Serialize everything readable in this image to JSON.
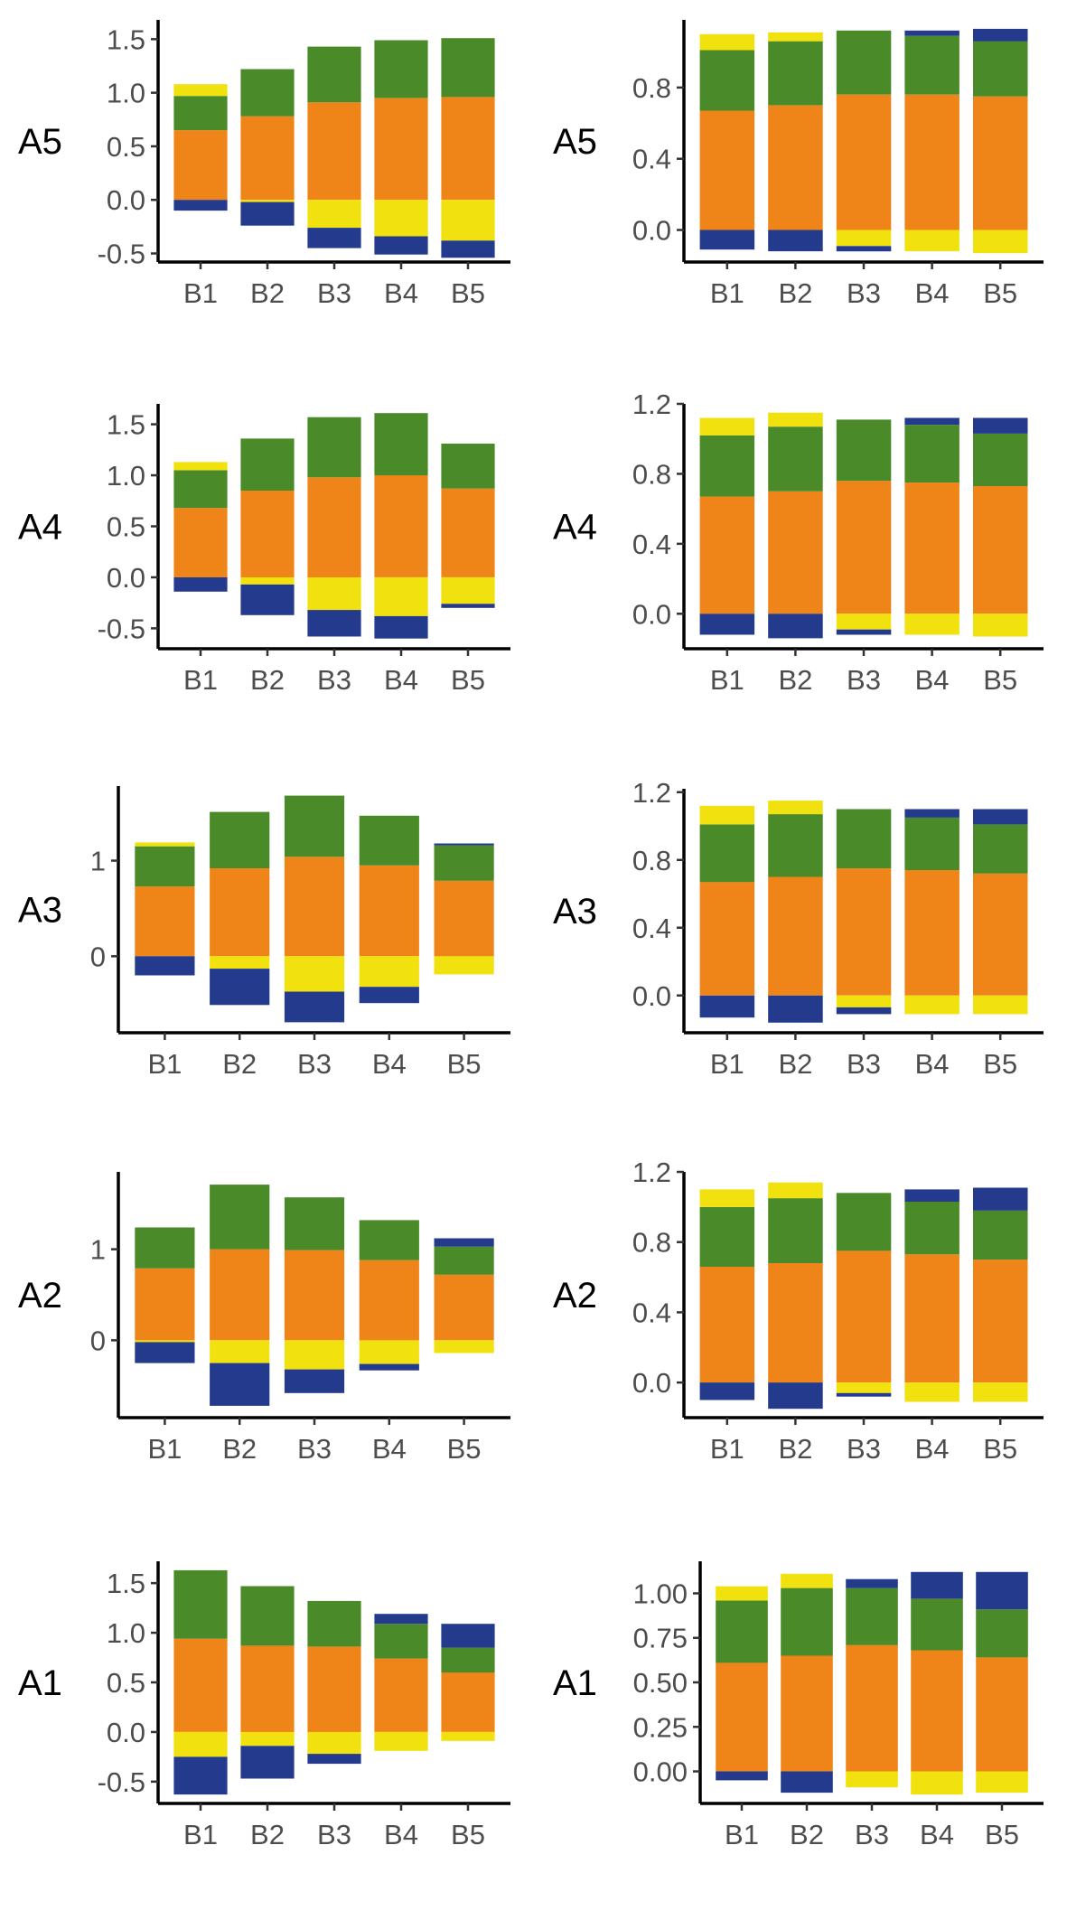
{
  "figure": {
    "colors": {
      "negative_high": "#243a8c",
      "negative_low": "#f0e10f",
      "positive_low": "#ef8519",
      "positive_mid": "#4a8a29",
      "positive_top_yellow": "#f0e10f",
      "positive_top_blue": "#243a8c"
    }
  },
  "chart_data": [
    {
      "type": "bar",
      "stacked": true,
      "row": "A5",
      "column": "left",
      "categories": [
        "B1",
        "B2",
        "B3",
        "B4",
        "B5"
      ],
      "ylim": [
        -0.58,
        1.68
      ],
      "yticks": [
        -0.5,
        0.0,
        0.5,
        1.0,
        1.5
      ],
      "ytick_labels": [
        "-0.5",
        "0.0",
        "0.5",
        "1.0",
        "1.5"
      ],
      "series": [
        {
          "name": "orange",
          "color": "#ef8519",
          "base": 0,
          "values": [
            0.65,
            0.78,
            0.91,
            0.95,
            0.96
          ]
        },
        {
          "name": "green",
          "color": "#4a8a29",
          "values": [
            0.32,
            0.44,
            0.52,
            0.54,
            0.55
          ]
        },
        {
          "name": "yellow-top",
          "color": "#f0e10f",
          "values": [
            0.11,
            0.0,
            0.0,
            0.0,
            0.0
          ]
        },
        {
          "name": "yellow-neg",
          "color": "#f0e10f",
          "values": [
            0.0,
            -0.02,
            -0.26,
            -0.34,
            -0.38
          ]
        },
        {
          "name": "blue-neg",
          "color": "#243a8c",
          "values": [
            -0.1,
            -0.22,
            -0.19,
            -0.17,
            -0.16
          ]
        }
      ]
    },
    {
      "type": "bar",
      "stacked": true,
      "row": "A5",
      "column": "right",
      "categories": [
        "B1",
        "B2",
        "B3",
        "B4",
        "B5"
      ],
      "ylim": [
        -0.18,
        1.18
      ],
      "yticks": [
        0.0,
        0.4,
        0.8
      ],
      "ytick_labels": [
        "0.0",
        "0.4",
        "0.8"
      ],
      "series": [
        {
          "name": "orange",
          "color": "#ef8519",
          "base": 0,
          "values": [
            0.67,
            0.7,
            0.76,
            0.76,
            0.75
          ]
        },
        {
          "name": "green",
          "color": "#4a8a29",
          "values": [
            0.34,
            0.36,
            0.36,
            0.33,
            0.31
          ]
        },
        {
          "name": "yellow-top",
          "color": "#f0e10f",
          "values": [
            0.09,
            0.05,
            0.0,
            0.0,
            0.0
          ]
        },
        {
          "name": "blue-top",
          "color": "#243a8c",
          "values": [
            0.0,
            0.0,
            0.0,
            0.03,
            0.07
          ]
        },
        {
          "name": "yellow-neg",
          "color": "#f0e10f",
          "values": [
            0.0,
            0.0,
            -0.09,
            -0.12,
            -0.13
          ]
        },
        {
          "name": "blue-neg",
          "color": "#243a8c",
          "values": [
            -0.11,
            -0.12,
            -0.03,
            0.0,
            0.0
          ]
        }
      ]
    },
    {
      "type": "bar",
      "stacked": true,
      "row": "A4",
      "column": "left",
      "categories": [
        "B1",
        "B2",
        "B3",
        "B4",
        "B5"
      ],
      "ylim": [
        -0.7,
        1.7
      ],
      "yticks": [
        -0.5,
        0.0,
        0.5,
        1.0,
        1.5
      ],
      "ytick_labels": [
        "-0.5",
        "0.0",
        "0.5",
        "1.0",
        "1.5"
      ],
      "series": [
        {
          "name": "orange",
          "color": "#ef8519",
          "base": 0,
          "values": [
            0.68,
            0.85,
            0.98,
            1.0,
            0.87
          ]
        },
        {
          "name": "green",
          "color": "#4a8a29",
          "values": [
            0.37,
            0.51,
            0.59,
            0.61,
            0.44
          ]
        },
        {
          "name": "yellow-top",
          "color": "#f0e10f",
          "values": [
            0.08,
            0.0,
            0.0,
            0.0,
            0.0
          ]
        },
        {
          "name": "yellow-neg",
          "color": "#f0e10f",
          "values": [
            0.0,
            -0.07,
            -0.32,
            -0.38,
            -0.26
          ]
        },
        {
          "name": "blue-neg",
          "color": "#243a8c",
          "values": [
            -0.14,
            -0.3,
            -0.26,
            -0.22,
            -0.04
          ]
        }
      ]
    },
    {
      "type": "bar",
      "stacked": true,
      "row": "A4",
      "column": "right",
      "categories": [
        "B1",
        "B2",
        "B3",
        "B4",
        "B5"
      ],
      "ylim": [
        -0.2,
        1.2
      ],
      "yticks": [
        0.0,
        0.4,
        0.8,
        1.2
      ],
      "ytick_labels": [
        "0.0",
        "0.4",
        "0.8",
        "1.2"
      ],
      "series": [
        {
          "name": "orange",
          "color": "#ef8519",
          "base": 0,
          "values": [
            0.67,
            0.7,
            0.76,
            0.75,
            0.73
          ]
        },
        {
          "name": "green",
          "color": "#4a8a29",
          "values": [
            0.35,
            0.37,
            0.35,
            0.33,
            0.3
          ]
        },
        {
          "name": "yellow-top",
          "color": "#f0e10f",
          "values": [
            0.1,
            0.08,
            0.0,
            0.0,
            0.0
          ]
        },
        {
          "name": "blue-top",
          "color": "#243a8c",
          "values": [
            0.0,
            0.0,
            0.0,
            0.04,
            0.09
          ]
        },
        {
          "name": "yellow-neg",
          "color": "#f0e10f",
          "values": [
            0.0,
            0.0,
            -0.09,
            -0.12,
            -0.13
          ]
        },
        {
          "name": "blue-neg",
          "color": "#243a8c",
          "values": [
            -0.12,
            -0.14,
            -0.03,
            0.0,
            0.0
          ]
        }
      ]
    },
    {
      "type": "bar",
      "stacked": true,
      "row": "A3",
      "column": "left",
      "categories": [
        "B1",
        "B2",
        "B3",
        "B4",
        "B5"
      ],
      "ylim": [
        -0.8,
        1.78
      ],
      "yticks": [
        0,
        1
      ],
      "ytick_labels": [
        "0",
        "1"
      ],
      "series": [
        {
          "name": "orange",
          "color": "#ef8519",
          "base": 0,
          "values": [
            0.73,
            0.92,
            1.04,
            0.95,
            0.79
          ]
        },
        {
          "name": "green",
          "color": "#4a8a29",
          "values": [
            0.42,
            0.59,
            0.64,
            0.52,
            0.37
          ]
        },
        {
          "name": "yellow-top",
          "color": "#f0e10f",
          "values": [
            0.04,
            0.0,
            0.0,
            0.0,
            0.0
          ]
        },
        {
          "name": "blue-top",
          "color": "#243a8c",
          "values": [
            0.0,
            0.0,
            0.0,
            0.0,
            0.02
          ]
        },
        {
          "name": "yellow-neg",
          "color": "#f0e10f",
          "values": [
            0.0,
            -0.13,
            -0.37,
            -0.32,
            -0.19
          ]
        },
        {
          "name": "blue-neg",
          "color": "#243a8c",
          "values": [
            -0.2,
            -0.38,
            -0.32,
            -0.17,
            0.0
          ]
        }
      ]
    },
    {
      "type": "bar",
      "stacked": true,
      "row": "A3",
      "column": "right",
      "categories": [
        "B1",
        "B2",
        "B3",
        "B4",
        "B5"
      ],
      "ylim": [
        -0.22,
        1.22
      ],
      "yticks": [
        0.0,
        0.4,
        0.8,
        1.2
      ],
      "ytick_labels": [
        "0.0",
        "0.4",
        "0.8",
        "1.2"
      ],
      "series": [
        {
          "name": "orange",
          "color": "#ef8519",
          "base": 0,
          "values": [
            0.67,
            0.7,
            0.75,
            0.74,
            0.72
          ]
        },
        {
          "name": "green",
          "color": "#4a8a29",
          "values": [
            0.34,
            0.37,
            0.35,
            0.31,
            0.29
          ]
        },
        {
          "name": "yellow-top",
          "color": "#f0e10f",
          "values": [
            0.11,
            0.08,
            0.0,
            0.0,
            0.0
          ]
        },
        {
          "name": "blue-top",
          "color": "#243a8c",
          "values": [
            0.0,
            0.0,
            0.0,
            0.05,
            0.09
          ]
        },
        {
          "name": "yellow-neg",
          "color": "#f0e10f",
          "values": [
            0.0,
            0.0,
            -0.07,
            -0.11,
            -0.11
          ]
        },
        {
          "name": "blue-neg",
          "color": "#243a8c",
          "values": [
            -0.13,
            -0.16,
            -0.04,
            0.0,
            0.0
          ]
        }
      ]
    },
    {
      "type": "bar",
      "stacked": true,
      "row": "A2",
      "column": "left",
      "categories": [
        "B1",
        "B2",
        "B3",
        "B4",
        "B5"
      ],
      "ylim": [
        -0.85,
        1.85
      ],
      "yticks": [
        0,
        1
      ],
      "ytick_labels": [
        "0",
        "1"
      ],
      "series": [
        {
          "name": "orange",
          "color": "#ef8519",
          "base": 0,
          "values": [
            0.79,
            1.0,
            0.99,
            0.88,
            0.72
          ]
        },
        {
          "name": "green",
          "color": "#4a8a29",
          "values": [
            0.45,
            0.71,
            0.58,
            0.44,
            0.31
          ]
        },
        {
          "name": "blue-top",
          "color": "#243a8c",
          "values": [
            0.0,
            0.0,
            0.0,
            0.0,
            0.09
          ]
        },
        {
          "name": "yellow-neg",
          "color": "#f0e10f",
          "values": [
            -0.02,
            -0.25,
            -0.32,
            -0.26,
            -0.14
          ]
        },
        {
          "name": "blue-neg",
          "color": "#243a8c",
          "values": [
            -0.23,
            -0.47,
            -0.26,
            -0.07,
            0.0
          ]
        }
      ]
    },
    {
      "type": "bar",
      "stacked": true,
      "row": "A2",
      "column": "right",
      "categories": [
        "B1",
        "B2",
        "B3",
        "B4",
        "B5"
      ],
      "ylim": [
        -0.2,
        1.2
      ],
      "yticks": [
        0.0,
        0.4,
        0.8,
        1.2
      ],
      "ytick_labels": [
        "0.0",
        "0.4",
        "0.8",
        "1.2"
      ],
      "series": [
        {
          "name": "orange",
          "color": "#ef8519",
          "base": 0,
          "values": [
            0.66,
            0.68,
            0.75,
            0.73,
            0.7
          ]
        },
        {
          "name": "green",
          "color": "#4a8a29",
          "values": [
            0.34,
            0.37,
            0.33,
            0.3,
            0.28
          ]
        },
        {
          "name": "yellow-top",
          "color": "#f0e10f",
          "values": [
            0.1,
            0.09,
            0.0,
            0.0,
            0.0
          ]
        },
        {
          "name": "blue-top",
          "color": "#243a8c",
          "values": [
            0.0,
            0.0,
            0.0,
            0.07,
            0.13
          ]
        },
        {
          "name": "yellow-neg",
          "color": "#f0e10f",
          "values": [
            0.0,
            0.0,
            -0.06,
            -0.11,
            -0.11
          ]
        },
        {
          "name": "blue-neg",
          "color": "#243a8c",
          "values": [
            -0.1,
            -0.15,
            -0.02,
            0.0,
            0.0
          ]
        }
      ]
    },
    {
      "type": "bar",
      "stacked": true,
      "row": "A1",
      "column": "left",
      "categories": [
        "B1",
        "B2",
        "B3",
        "B4",
        "B5"
      ],
      "ylim": [
        -0.72,
        1.72
      ],
      "yticks": [
        -0.5,
        0.0,
        0.5,
        1.0,
        1.5
      ],
      "ytick_labels": [
        "-0.5",
        "0.0",
        "0.5",
        "1.0",
        "1.5"
      ],
      "series": [
        {
          "name": "orange",
          "color": "#ef8519",
          "base": 0,
          "values": [
            0.94,
            0.87,
            0.86,
            0.74,
            0.6
          ]
        },
        {
          "name": "green",
          "color": "#4a8a29",
          "values": [
            0.69,
            0.6,
            0.46,
            0.35,
            0.25
          ]
        },
        {
          "name": "blue-top",
          "color": "#243a8c",
          "values": [
            0.0,
            0.0,
            0.0,
            0.1,
            0.24
          ]
        },
        {
          "name": "yellow-neg",
          "color": "#f0e10f",
          "values": [
            -0.25,
            -0.14,
            -0.22,
            -0.19,
            -0.09
          ]
        },
        {
          "name": "blue-neg",
          "color": "#243a8c",
          "values": [
            -0.38,
            -0.33,
            -0.1,
            0.0,
            0.0
          ]
        }
      ]
    },
    {
      "type": "bar",
      "stacked": true,
      "row": "A1",
      "column": "right",
      "categories": [
        "B1",
        "B2",
        "B3",
        "B4",
        "B5"
      ],
      "ylim": [
        -0.18,
        1.18
      ],
      "yticks": [
        0.0,
        0.25,
        0.5,
        0.75,
        1.0
      ],
      "ytick_labels": [
        "0.00",
        "0.25",
        "0.50",
        "0.75",
        "1.00"
      ],
      "series": [
        {
          "name": "orange",
          "color": "#ef8519",
          "base": 0,
          "values": [
            0.61,
            0.65,
            0.71,
            0.68,
            0.64
          ]
        },
        {
          "name": "green",
          "color": "#4a8a29",
          "values": [
            0.35,
            0.38,
            0.32,
            0.29,
            0.27
          ]
        },
        {
          "name": "yellow-top",
          "color": "#f0e10f",
          "values": [
            0.08,
            0.08,
            0.0,
            0.0,
            0.0
          ]
        },
        {
          "name": "blue-top",
          "color": "#243a8c",
          "values": [
            0.0,
            0.0,
            0.05,
            0.15,
            0.21
          ]
        },
        {
          "name": "yellow-neg",
          "color": "#f0e10f",
          "values": [
            0.0,
            0.0,
            -0.09,
            -0.13,
            -0.12
          ]
        },
        {
          "name": "blue-neg",
          "color": "#243a8c",
          "values": [
            -0.05,
            -0.12,
            0.0,
            0.0,
            0.0
          ]
        }
      ]
    }
  ]
}
